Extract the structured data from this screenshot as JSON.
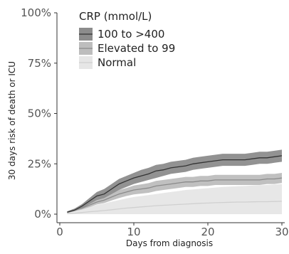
{
  "chart_data": {
    "type": "area",
    "xlabel": "Days from diagnosis",
    "ylabel": "30 days risk of death or ICU",
    "xlim": [
      0,
      30
    ],
    "ylim": [
      0,
      100
    ],
    "x_ticks": [
      0,
      10,
      20,
      30
    ],
    "y_ticks": [
      0,
      25,
      50,
      75,
      100
    ],
    "x_tick_labels": [
      "0",
      "10",
      "20",
      "30"
    ],
    "y_tick_labels": [
      "0%",
      "25%",
      "50%",
      "75%",
      "100%"
    ],
    "grid": false,
    "legend": {
      "title": "CRP (mmol/L)",
      "placement": "top-left"
    },
    "series": [
      {
        "name": "100 to >400",
        "color": "#333333",
        "band_color": "#8c8c8c",
        "x": [
          1,
          2,
          3,
          4,
          5,
          6,
          7,
          8,
          9,
          10,
          11,
          12,
          13,
          14,
          15,
          16,
          17,
          18,
          19,
          20,
          21,
          22,
          23,
          24,
          25,
          26,
          27,
          28,
          29,
          30
        ],
        "y": [
          1,
          2,
          4,
          6.5,
          9,
          10,
          12.5,
          15,
          16.5,
          18,
          19,
          20,
          21.5,
          22,
          23,
          23.5,
          24,
          25,
          25.5,
          26,
          26.5,
          27,
          27,
          27,
          27,
          27.5,
          28,
          28,
          28.5,
          29
        ],
        "lower": [
          0.6,
          1.5,
          3,
          5,
          7,
          8,
          10,
          12,
          13.5,
          15,
          16,
          17,
          18,
          19,
          20,
          20.5,
          21,
          22,
          22.5,
          23,
          23.5,
          24,
          24,
          24,
          24,
          24.5,
          25,
          25,
          25.5,
          26
        ],
        "upper": [
          1.4,
          2.8,
          5,
          8,
          11,
          12.5,
          15,
          17.5,
          19,
          20.5,
          22,
          23,
          24.5,
          25,
          26,
          26.5,
          27,
          28,
          28.5,
          29,
          29.5,
          30,
          30,
          30,
          30,
          30.5,
          31,
          31,
          31.5,
          32
        ]
      },
      {
        "name": "Elevated to 99",
        "color": "#8a8a8a",
        "band_color": "#bdbdbd",
        "x": [
          1,
          2,
          3,
          4,
          5,
          6,
          7,
          8,
          9,
          10,
          11,
          12,
          13,
          14,
          15,
          16,
          17,
          18,
          19,
          20,
          21,
          22,
          23,
          24,
          25,
          26,
          27,
          28,
          29,
          30
        ],
        "y": [
          1,
          2,
          3,
          4.5,
          6,
          7,
          8.5,
          10,
          11,
          12,
          12.5,
          13,
          14,
          14.5,
          15,
          15.5,
          16,
          16,
          16.5,
          16.5,
          17,
          17,
          17,
          17,
          17,
          17,
          17,
          17.5,
          17.5,
          18
        ],
        "lower": [
          0.7,
          1.5,
          2.3,
          3.5,
          4.8,
          5.5,
          6.8,
          8,
          9,
          9.8,
          10.2,
          10.6,
          11.5,
          12,
          12.5,
          13,
          13.5,
          13.5,
          14,
          14,
          14.5,
          14.5,
          14.5,
          14.5,
          14.5,
          14.5,
          14.5,
          15,
          15,
          15.5
        ],
        "upper": [
          1.3,
          2.5,
          3.8,
          5.5,
          7.3,
          8.5,
          10.2,
          12,
          13,
          14.2,
          14.8,
          15.4,
          16.5,
          17,
          17.5,
          18,
          18.5,
          18.5,
          19,
          19,
          19.5,
          19.5,
          19.5,
          19.5,
          19.5,
          19.5,
          19.5,
          20,
          20,
          20.5
        ]
      },
      {
        "name": "Normal",
        "color": "#d0d0d0",
        "band_color": "#e6e6e6",
        "x": [
          1,
          2,
          3,
          4,
          5,
          6,
          7,
          8,
          9,
          10,
          11,
          12,
          13,
          14,
          15,
          16,
          17,
          18,
          19,
          20,
          21,
          22,
          23,
          24,
          25,
          26,
          27,
          28,
          29,
          30
        ],
        "y": [
          0.3,
          0.5,
          0.8,
          1.2,
          1.5,
          1.8,
          2.2,
          2.6,
          3,
          3.3,
          3.6,
          3.9,
          4.2,
          4.4,
          4.6,
          4.8,
          5,
          5.2,
          5.4,
          5.5,
          5.7,
          5.8,
          5.9,
          6,
          6,
          6.1,
          6.2,
          6.2,
          6.3,
          6.4
        ],
        "lower": [
          0,
          0,
          0,
          0,
          0,
          0,
          0,
          0,
          0,
          0,
          0,
          0,
          0,
          0,
          0,
          0,
          0,
          0,
          0,
          0,
          0,
          0,
          0,
          0,
          0,
          0,
          0,
          0,
          0,
          0
        ],
        "upper": [
          1.2,
          1.8,
          2.6,
          3.6,
          4.6,
          5.3,
          6.2,
          7,
          7.8,
          8.5,
          9,
          9.5,
          10,
          10.5,
          11,
          11.5,
          12,
          12.3,
          12.6,
          12.9,
          13.2,
          13.5,
          13.7,
          13.9,
          14,
          14.2,
          14.4,
          14.5,
          14.7,
          15
        ]
      }
    ]
  }
}
